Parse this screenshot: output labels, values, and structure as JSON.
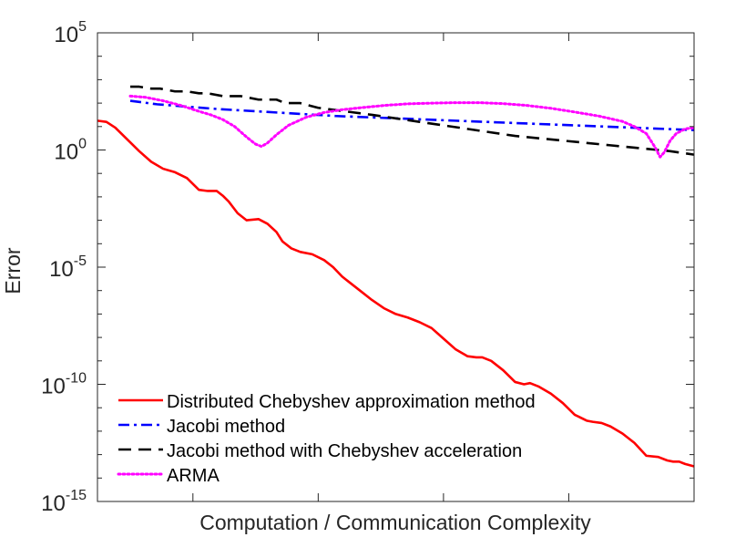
{
  "chart_data": {
    "type": "line",
    "title": "",
    "xlabel": "Computation / Communication Complexity",
    "ylabel": "Error",
    "y_scale": "log",
    "xlim": [
      0,
      100
    ],
    "ylim_exponent": [
      -15,
      5
    ],
    "y_ticks": [
      {
        "base": "10",
        "exp": "5",
        "value": 5
      },
      {
        "base": "10",
        "exp": "0",
        "value": 0
      },
      {
        "base": "10",
        "exp": "-5",
        "value": -5
      },
      {
        "base": "10",
        "exp": "-10",
        "value": -10
      },
      {
        "base": "10",
        "exp": "-15",
        "value": -15
      }
    ],
    "x_ticks": [
      16,
      37,
      58,
      79
    ],
    "x_tick_labels_shown": false,
    "grid": false,
    "legend_position": "bottom-left",
    "series": [
      {
        "name": "Distributed Chebyshev approximation method",
        "color": "#ff0000",
        "style": "solid",
        "x": [
          0,
          1.5,
          3,
          5,
          7,
          9,
          11,
          13,
          15,
          17,
          18.5,
          20,
          21,
          22,
          23.5,
          25,
          27,
          28.5,
          30,
          31,
          32.5,
          34,
          36,
          38,
          39.5,
          41,
          42,
          44,
          46,
          48,
          50,
          52,
          54,
          56,
          58,
          60,
          62,
          63.5,
          64.5,
          66,
          68,
          70,
          71.5,
          72.5,
          74,
          76,
          78,
          80,
          82,
          83,
          84.5,
          86,
          88,
          90,
          92,
          94,
          95.5,
          96.5,
          97.5,
          98.5,
          100
        ],
        "log10_y": [
          1.25,
          1.2,
          0.95,
          0.45,
          -0.05,
          -0.5,
          -0.8,
          -0.95,
          -1.2,
          -1.7,
          -1.75,
          -1.75,
          -1.95,
          -2.2,
          -2.7,
          -3.0,
          -2.95,
          -3.15,
          -3.5,
          -3.9,
          -4.2,
          -4.35,
          -4.45,
          -4.7,
          -5.0,
          -5.4,
          -5.6,
          -6.0,
          -6.4,
          -6.75,
          -7.0,
          -7.15,
          -7.35,
          -7.6,
          -8.05,
          -8.5,
          -8.8,
          -8.85,
          -8.85,
          -9.0,
          -9.4,
          -9.9,
          -10.0,
          -9.95,
          -10.1,
          -10.4,
          -10.8,
          -11.3,
          -11.55,
          -11.6,
          -11.65,
          -11.8,
          -12.1,
          -12.5,
          -13.05,
          -13.1,
          -13.25,
          -13.3,
          -13.3,
          -13.4,
          -13.5
        ]
      },
      {
        "name": "Jacobi method",
        "color": "#0000ff",
        "style": "dashdot",
        "x": [
          5.5,
          10,
          20,
          30,
          40,
          50,
          60,
          70,
          80,
          90,
          100
        ],
        "log10_y": [
          2.1,
          1.95,
          1.75,
          1.6,
          1.45,
          1.35,
          1.25,
          1.15,
          1.05,
          0.95,
          0.85
        ]
      },
      {
        "name": "Jacobi method with Chebyshev acceleration",
        "color": "#000000",
        "style": "dashed",
        "x": [
          5.5,
          7,
          9,
          10.5,
          13,
          15,
          17,
          18.5,
          21,
          24,
          27,
          30,
          31.5,
          34,
          37,
          40,
          43,
          46,
          50,
          54,
          58,
          62,
          66,
          70,
          74,
          78,
          82,
          86,
          90,
          94,
          96,
          100
        ],
        "log10_y": [
          2.7,
          2.7,
          2.62,
          2.62,
          2.5,
          2.5,
          2.42,
          2.42,
          2.3,
          2.3,
          2.15,
          2.15,
          2.0,
          2.0,
          1.8,
          1.7,
          1.6,
          1.5,
          1.35,
          1.2,
          1.05,
          0.9,
          0.75,
          0.6,
          0.5,
          0.4,
          0.3,
          0.2,
          0.1,
          0.0,
          -0.05,
          -0.2
        ]
      },
      {
        "name": "ARMA",
        "color": "#ff00ff",
        "style": "dotted",
        "x": [
          5.5,
          8,
          11,
          14,
          17,
          19,
          21,
          23,
          25,
          26.5,
          27.5,
          28.5,
          30,
          32,
          35,
          38,
          41,
          44,
          48,
          52,
          56,
          60,
          64,
          68,
          72,
          76,
          80,
          84,
          88,
          90,
          92,
          93.5,
          94.3,
          95,
          96,
          97,
          98.5,
          100
        ],
        "log10_y": [
          2.3,
          2.25,
          2.1,
          1.9,
          1.65,
          1.5,
          1.3,
          1.0,
          0.55,
          0.25,
          0.15,
          0.3,
          0.65,
          1.05,
          1.4,
          1.6,
          1.72,
          1.8,
          1.9,
          1.97,
          2.0,
          2.02,
          2.02,
          1.98,
          1.9,
          1.78,
          1.62,
          1.45,
          1.22,
          1.0,
          0.7,
          0.1,
          -0.3,
          -0.1,
          0.4,
          0.7,
          0.9,
          0.95
        ]
      }
    ]
  }
}
